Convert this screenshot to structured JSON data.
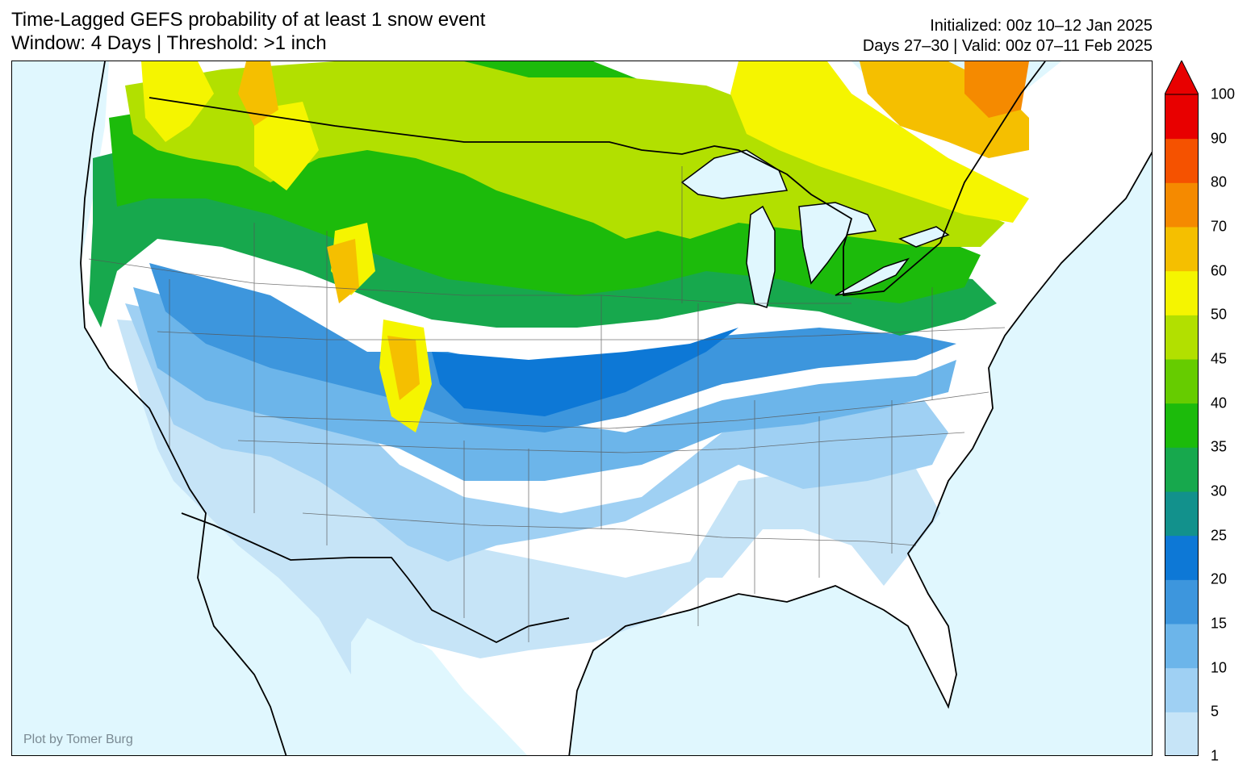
{
  "title": {
    "line1": "Time-Lagged GEFS probability of at least 1 snow event",
    "line2": "Window: 4 Days | Threshold: >1 inch"
  },
  "header_right": {
    "line1": "Initialized: 00z 10–12 Jan 2025",
    "line2": "Days 27–30 | Valid: 00z 07–11 Feb 2025"
  },
  "credit": "Plot by Tomer Burg",
  "colors": {
    "ocean": "#e0f7fe",
    "land_no_signal": "#ffffff",
    "coastline": "#000000",
    "state_borders": "#555555"
  },
  "colorbar": {
    "levels": [
      1,
      5,
      10,
      15,
      20,
      25,
      30,
      35,
      40,
      45,
      50,
      60,
      70,
      80,
      90,
      100
    ],
    "colors": [
      "#c6e4f7",
      "#9fd0f3",
      "#6cb5ea",
      "#3d96dd",
      "#0d78d6",
      "#12918c",
      "#17a84d",
      "#1cbb0b",
      "#66cc00",
      "#b2e000",
      "#f5f500",
      "#f5bf00",
      "#f58a00",
      "#f55200",
      "#e80000"
    ],
    "extend_max_color": "#e80000"
  },
  "map": {
    "region": "Contiguous United States",
    "lakes": [
      "Superior",
      "Michigan",
      "Huron",
      "Erie",
      "Ontario"
    ]
  }
}
